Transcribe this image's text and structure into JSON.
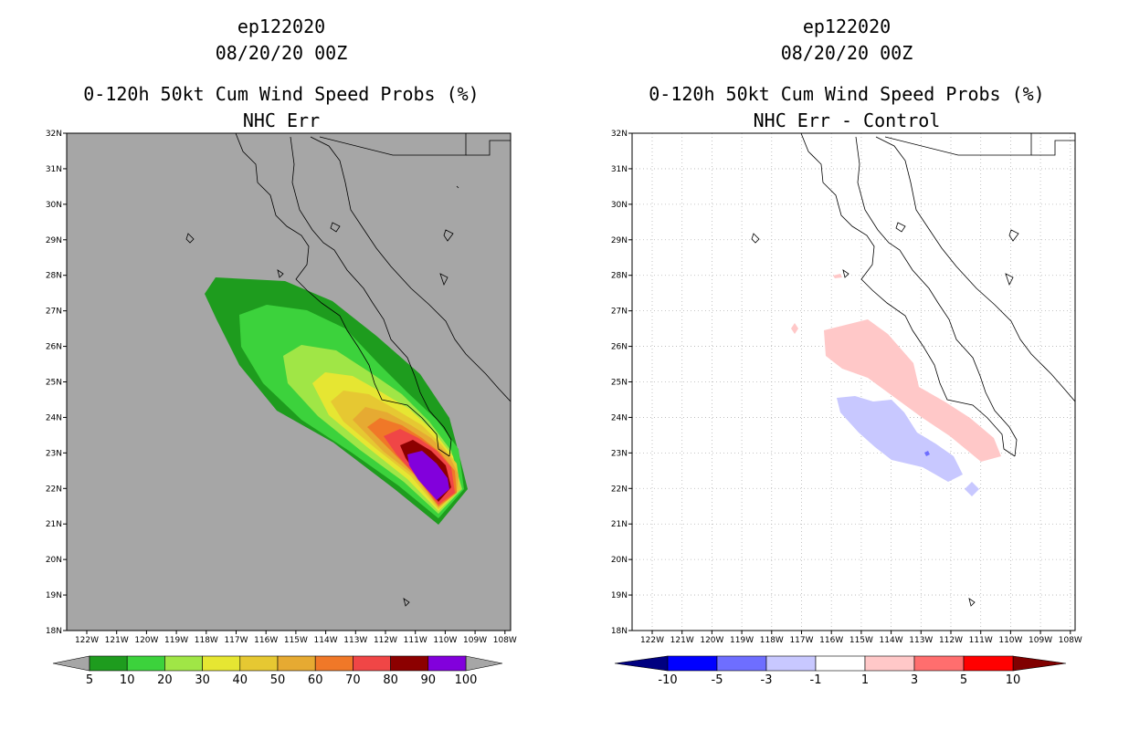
{
  "panels": [
    {
      "id": "left",
      "title_lines": [
        "ep122020",
        "08/20/20 00Z",
        "0-120h 50kt Cum Wind Speed Probs (%)",
        "NHC Err"
      ],
      "background_color": "#a6a6a6",
      "gridlines": false,
      "colorbar": {
        "labels": [
          "5",
          "10",
          "20",
          "30",
          "40",
          "50",
          "60",
          "70",
          "80",
          "90",
          "100"
        ],
        "colors": [
          "#1e9c1e",
          "#3cd23c",
          "#a0e646",
          "#e6e632",
          "#e6c832",
          "#e6aa32",
          "#f07828",
          "#f04646",
          "#8c0000",
          "#8200dc"
        ],
        "below_color": "#a6a6a6",
        "above_color": "#a6a6a6"
      }
    },
    {
      "id": "right",
      "title_lines": [
        "ep122020",
        "08/20/20 00Z",
        "0-120h 50kt Cum Wind Speed Probs (%)",
        "NHC Err - Control"
      ],
      "background_color": "#ffffff",
      "gridlines": true,
      "colorbar": {
        "labels": [
          "-10",
          "-5",
          "-3",
          "-1",
          "1",
          "3",
          "5",
          "10"
        ],
        "colors": [
          "#0000ff",
          "#6e6eff",
          "#c8c8ff",
          "#ffffff",
          "#ffc8c8",
          "#ff6e6e",
          "#ff0000"
        ],
        "below_color": "#000080",
        "above_color": "#800000"
      }
    }
  ],
  "map": {
    "lat_labels": [
      "18N",
      "19N",
      "20N",
      "21N",
      "22N",
      "23N",
      "24N",
      "25N",
      "26N",
      "27N",
      "28N",
      "29N",
      "30N",
      "31N",
      "32N"
    ],
    "lon_labels": [
      "122W",
      "121W",
      "120W",
      "119W",
      "118W",
      "117W",
      "116W",
      "115W",
      "114W",
      "113W",
      "112W",
      "111W",
      "110W",
      "109W",
      "108W"
    ],
    "lat_range": [
      18,
      32
    ],
    "lon_range": [
      -122.8,
      -107.8
    ]
  }
}
